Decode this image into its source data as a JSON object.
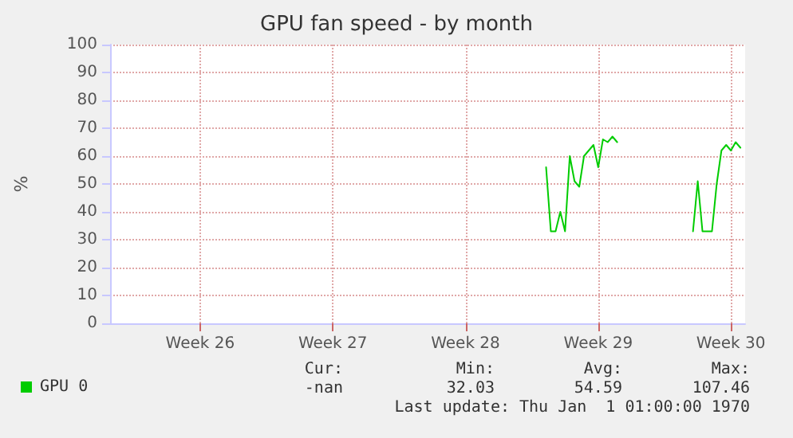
{
  "chart_data": {
    "type": "line",
    "title": "GPU fan speed - by month",
    "ylabel": "%",
    "categories": [
      null,
      null,
      null,
      null,
      null,
      null,
      null,
      null,
      null,
      null,
      null,
      null,
      null,
      null,
      null,
      null,
      null,
      null,
      null,
      "Week 26",
      null,
      null,
      null,
      null,
      null,
      null,
      null,
      null,
      null,
      null,
      null,
      null,
      null,
      null,
      null,
      null,
      null,
      null,
      null,
      null,
      null,
      null,
      null,
      null,
      null,
      null,
      null,
      "Week 27",
      null,
      null,
      null,
      null,
      null,
      null,
      null,
      null,
      null,
      null,
      null,
      null,
      null,
      null,
      null,
      null,
      null,
      null,
      null,
      null,
      null,
      null,
      null,
      null,
      null,
      null,
      null,
      "Week 28",
      null,
      null,
      null,
      null,
      null,
      null,
      null,
      null,
      null,
      null,
      null,
      null,
      null,
      null,
      null,
      null,
      null,
      null,
      null,
      null,
      null,
      null,
      null,
      null,
      null,
      null,
      null,
      "Week 29",
      null,
      null,
      null,
      null,
      null,
      null,
      null,
      null,
      null,
      null,
      null,
      null,
      null,
      null,
      null,
      null,
      null,
      null,
      null,
      null,
      null,
      null,
      null,
      null,
      null,
      null,
      null,
      "Week 30",
      null,
      null,
      null
    ],
    "ylim": [
      0,
      100
    ],
    "yticks": [
      0,
      10,
      20,
      30,
      40,
      50,
      60,
      70,
      80,
      90,
      100
    ],
    "grid": true,
    "legend": "bottom left",
    "marker": "none",
    "line_style": "solid",
    "series": [
      {
        "name": "GPU 0",
        "color": "#00cc00",
        "values": [
          null,
          null,
          null,
          null,
          null,
          null,
          null,
          null,
          null,
          null,
          null,
          null,
          null,
          null,
          null,
          null,
          null,
          null,
          null,
          null,
          null,
          null,
          null,
          null,
          null,
          null,
          null,
          null,
          null,
          null,
          null,
          null,
          null,
          null,
          null,
          null,
          null,
          null,
          null,
          null,
          null,
          null,
          null,
          null,
          null,
          null,
          null,
          null,
          null,
          null,
          null,
          null,
          null,
          null,
          null,
          null,
          null,
          null,
          null,
          null,
          null,
          null,
          null,
          null,
          null,
          null,
          null,
          null,
          null,
          null,
          null,
          null,
          null,
          null,
          null,
          null,
          null,
          null,
          null,
          null,
          null,
          null,
          null,
          null,
          null,
          null,
          null,
          null,
          null,
          null,
          null,
          null,
          56,
          33,
          33,
          40,
          33,
          60,
          51,
          49,
          60,
          62,
          64,
          56,
          66,
          65,
          67,
          65,
          null,
          null,
          null,
          null,
          null,
          null,
          null,
          null,
          null,
          null,
          null,
          null,
          null,
          null,
          null,
          33,
          51,
          33,
          33,
          33,
          50,
          62,
          64,
          62,
          65,
          63,
          null
        ]
      }
    ],
    "annotations": [
      "Cur:",
      "Min:",
      "Avg:",
      "Max:",
      "-nan",
      "32.03",
      "54.59",
      "107.46",
      "Last update: Thu Jan  1 01:00:00 1970"
    ]
  }
}
